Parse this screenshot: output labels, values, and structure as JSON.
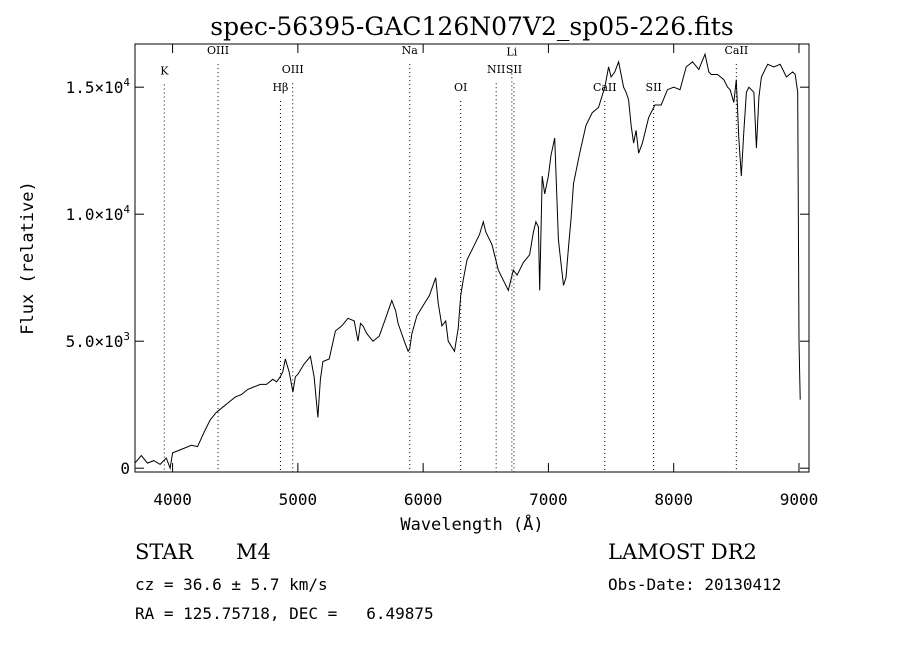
{
  "chart_data": {
    "type": "line",
    "title": "spec-56395-GAC126N07V2_sp05-226.fits",
    "xlabel": "Wavelength (Å)",
    "ylabel": "Flux (relative)",
    "xlim": [
      3700,
      9080
    ],
    "ylim": [
      -150,
      16700
    ],
    "x_ticks": [
      {
        "value": 4000,
        "label": "4000"
      },
      {
        "value": 5000,
        "label": "5000"
      },
      {
        "value": 6000,
        "label": "6000"
      },
      {
        "value": 7000,
        "label": "7000"
      },
      {
        "value": 8000,
        "label": "8000"
      },
      {
        "value": 9000,
        "label": "9000"
      }
    ],
    "y_ticks": [
      {
        "value": 0,
        "label": "0",
        "mant": "0",
        "exp": ""
      },
      {
        "value": 5000,
        "label": "5.0×10³",
        "mant": "5.0×10",
        "exp": "3"
      },
      {
        "value": 10000,
        "label": "1.0×10⁴",
        "mant": "1.0×10",
        "exp": "4"
      },
      {
        "value": 15000,
        "label": "1.5×10⁴",
        "mant": "1.5×10",
        "exp": "4"
      }
    ],
    "line_markers": [
      {
        "label": "K",
        "x": 3934,
        "label_flux": 15500
      },
      {
        "label": "OIII",
        "x": 4363,
        "label_flux": 16300
      },
      {
        "label": "Hβ",
        "x": 4861,
        "label_flux": 14850
      },
      {
        "label": "OIII",
        "x": 4959,
        "label_flux": 15550
      },
      {
        "label": "Na",
        "x": 5893,
        "label_flux": 16300
      },
      {
        "label": "OI",
        "x": 6300,
        "label_flux": 14850
      },
      {
        "label": "NII",
        "x": 6583,
        "label_flux": 15550
      },
      {
        "label": "Li",
        "x": 6708,
        "label_flux": 16250
      },
      {
        "label": "SII",
        "x": 6725,
        "label_flux": 15550
      },
      {
        "label": "CaII",
        "x": 7450,
        "label_flux": 14850
      },
      {
        "label": "SII",
        "x": 7840,
        "label_flux": 14850
      },
      {
        "label": "CaII",
        "x": 8500,
        "label_flux": 16300
      }
    ],
    "series": [
      {
        "x": [
          3700,
          3750,
          3800,
          3850,
          3900,
          3950,
          3980,
          4000,
          4050,
          4100,
          4150,
          4200,
          4250,
          4300,
          4350,
          4400,
          4450,
          4500,
          4550,
          4600,
          4650,
          4700,
          4750,
          4800,
          4830,
          4860,
          4880,
          4900,
          4930,
          4960,
          4980,
          5000,
          5050,
          5100,
          5130,
          5160,
          5170,
          5180,
          5200,
          5250,
          5300,
          5350,
          5400,
          5450,
          5480,
          5500,
          5520,
          5550,
          5600,
          5650,
          5700,
          5750,
          5780,
          5800,
          5850,
          5880,
          5893,
          5910,
          5950,
          6000,
          6050,
          6100,
          6120,
          6150,
          6180,
          6200,
          6250,
          6280,
          6300,
          6320,
          6350,
          6400,
          6450,
          6480,
          6500,
          6550,
          6580,
          6600,
          6650,
          6680,
          6700,
          6720,
          6750,
          6800,
          6850,
          6880,
          6900,
          6920,
          6930,
          6950,
          6970,
          7000,
          7020,
          7050,
          7080,
          7100,
          7120,
          7140,
          7160,
          7180,
          7200,
          7250,
          7300,
          7350,
          7400,
          7450,
          7480,
          7500,
          7530,
          7560,
          7580,
          7600,
          7620,
          7640,
          7660,
          7680,
          7700,
          7720,
          7750,
          7800,
          7850,
          7900,
          7950,
          8000,
          8050,
          8100,
          8150,
          8200,
          8250,
          8280,
          8300,
          8350,
          8400,
          8430,
          8450,
          8480,
          8500,
          8520,
          8540,
          8560,
          8580,
          8600,
          8640,
          8660,
          8680,
          8700,
          8750,
          8800,
          8850,
          8900,
          8950,
          8970,
          8990,
          9000,
          9010
        ],
        "y": [
          200,
          500,
          200,
          300,
          150,
          400,
          0,
          600,
          700,
          800,
          900,
          850,
          1400,
          1900,
          2200,
          2400,
          2600,
          2800,
          2900,
          3100,
          3200,
          3300,
          3300,
          3500,
          3400,
          3600,
          3800,
          4300,
          3800,
          3000,
          3600,
          3700,
          4100,
          4400,
          3600,
          2000,
          2800,
          3500,
          4200,
          4300,
          5400,
          5600,
          5900,
          5800,
          5000,
          5700,
          5600,
          5300,
          5000,
          5200,
          5900,
          6600,
          6200,
          5700,
          5000,
          4600,
          4700,
          5300,
          6000,
          6400,
          6800,
          7500,
          6500,
          5600,
          5800,
          5000,
          4600,
          5500,
          6800,
          7400,
          8200,
          8700,
          9200,
          9700,
          9300,
          8800,
          8200,
          7800,
          7300,
          7000,
          7400,
          7800,
          7600,
          8100,
          8400,
          9300,
          9700,
          9500,
          7000,
          11500,
          10800,
          11500,
          12300,
          13000,
          9000,
          8100,
          7200,
          7500,
          8700,
          9800,
          11200,
          12400,
          13500,
          14000,
          14200,
          15000,
          15800,
          15400,
          15600,
          16000,
          15500,
          15000,
          14800,
          14500,
          13500,
          12800,
          13300,
          12400,
          12800,
          13800,
          14300,
          14300,
          14900,
          15000,
          14900,
          15800,
          16000,
          15700,
          16300,
          15600,
          15500,
          15500,
          15300,
          15000,
          14900,
          14400,
          15300,
          13000,
          11500,
          13300,
          14800,
          15000,
          14800,
          12600,
          14600,
          15400,
          15900,
          15800,
          15900,
          15400,
          15600,
          15500,
          14800,
          5000,
          2700
        ]
      }
    ]
  },
  "info": {
    "object_class": "STAR",
    "subclass": "M4",
    "survey": "LAMOST DR2",
    "cz": "cz = 36.6 ± 5.7 km/s",
    "obs_date": "Obs-Date: 20130412",
    "radec": "RA = 125.75718, DEC =   6.49875"
  }
}
